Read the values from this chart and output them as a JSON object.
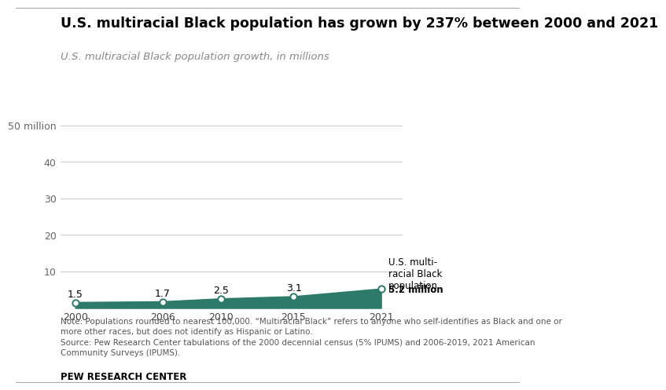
{
  "title": "U.S. multiracial Black population has grown by 237% between 2000 and 2021",
  "subtitle": "U.S. multiracial Black population growth, in millions",
  "years": [
    2000,
    2006,
    2010,
    2015,
    2021
  ],
  "values": [
    1.5,
    1.7,
    2.5,
    3.1,
    5.2
  ],
  "area_color": "#2D7A6B",
  "line_color": "#2D7A6B",
  "marker_facecolor": "white",
  "marker_edgecolor": "#2D7A6B",
  "marker_size": 6,
  "yticks": [
    0,
    10,
    20,
    30,
    40,
    50
  ],
  "ytick_labels": [
    "",
    "10",
    "20",
    "30",
    "40",
    "50 million"
  ],
  "xtick_years": [
    2000,
    2006,
    2010,
    2015,
    2021
  ],
  "xlim": [
    1999,
    2022.5
  ],
  "ylim": [
    0,
    56
  ],
  "annotation_normal": "U.S. multi-\nracial Black\npopulation",
  "annotation_bold": "5.2 million",
  "note_text": "Note: Populations rounded to nearest 100,000. “Multiracial Black” refers to anyone who self-identifies as Black and one or\nmore other races, but does not identify as Hispanic or Latino.\nSource: Pew Research Center tabulations of the 2000 decennial census (5% IPUMS) and 2006-2019, 2021 American\nCommunity Surveys (IPUMS).",
  "footer_text": "PEW RESEARCH CENTER",
  "background_color": "#ffffff",
  "grid_color": "#cccccc",
  "title_fontsize": 12.5,
  "subtitle_fontsize": 9.5,
  "tick_fontsize": 9,
  "label_fontsize": 9,
  "note_fontsize": 7.5,
  "footer_fontsize": 8.5,
  "annot_fontsize": 8.5
}
